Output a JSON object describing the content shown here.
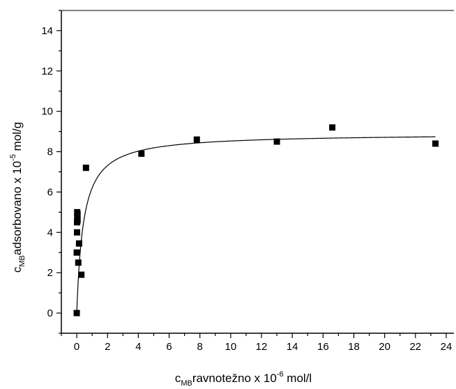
{
  "chart_data": {
    "type": "scatter",
    "title": "",
    "xlabel": {
      "main": "c",
      "sub": "MB",
      "rest": "ravnotežno x 10",
      "sup": "-6",
      "tail": " mol/l"
    },
    "ylabel": {
      "main": "c",
      "sub": "MB",
      "rest": "adsorbovano x 10",
      "sup": "-5",
      "tail": " mol/g"
    },
    "xlim": [
      -1,
      24.5
    ],
    "ylim": [
      -1,
      15
    ],
    "xticks": [
      0,
      2,
      4,
      6,
      8,
      10,
      12,
      14,
      16,
      18,
      20,
      22,
      24
    ],
    "yticks": [
      0,
      2,
      4,
      6,
      8,
      10,
      12,
      14
    ],
    "grid": false,
    "series": [
      {
        "type": "scatter",
        "marker": "square",
        "color": "#000000",
        "x": [
          0.0,
          0.0,
          0.02,
          0.02,
          0.03,
          0.03,
          0.05,
          0.05,
          0.1,
          0.15,
          0.3,
          0.6,
          4.2,
          7.8,
          13.0,
          16.6,
          23.3
        ],
        "y": [
          0.0,
          3.0,
          4.0,
          4.5,
          4.75,
          5.0,
          4.6,
          4.9,
          2.5,
          3.45,
          1.9,
          7.2,
          7.9,
          8.6,
          8.5,
          9.2,
          8.4
        ]
      },
      {
        "type": "line",
        "model": "langmuir",
        "color": "#000000",
        "qmax": 8.9,
        "k": 2.3,
        "x_from": 0.0,
        "x_to": 23.3
      }
    ]
  }
}
